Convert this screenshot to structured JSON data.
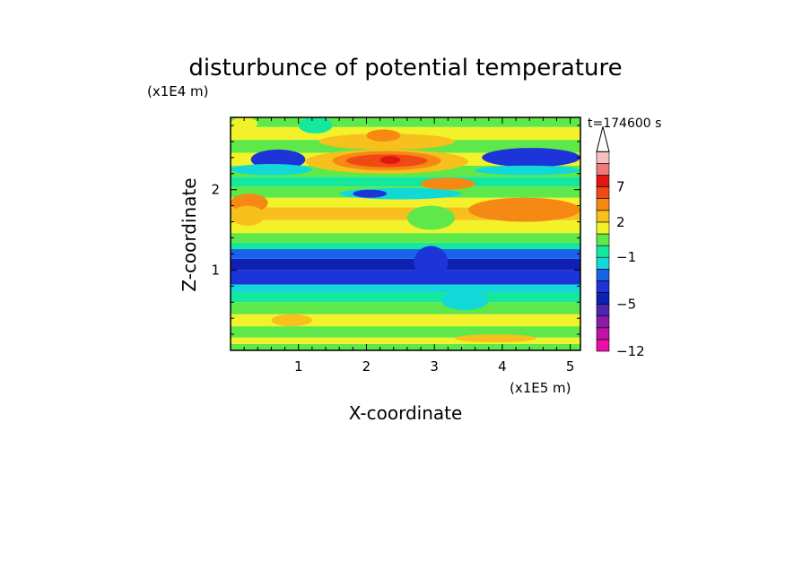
{
  "chart_data": {
    "type": "heatmap",
    "title": "disturbunce of potential temperature",
    "xlabel": "X-coordinate",
    "ylabel": "Z-coordinate",
    "x_unit": "(x1E5 m)",
    "y_unit": "(x1E4 m)",
    "time_label": "t=174600 s",
    "xlim": [
      0,
      5.15
    ],
    "ylim": [
      0,
      2.9
    ],
    "x_ticks": [
      "1",
      "2",
      "3",
      "4",
      "5"
    ],
    "y_ticks": [
      "1",
      "2"
    ],
    "colorbar": {
      "levels": [
        -12,
        -11,
        -9,
        -7,
        -5,
        -4,
        -3,
        -2,
        -1,
        0,
        1,
        2,
        3,
        5,
        7,
        9,
        11
      ],
      "colors": [
        "#ec0ea6",
        "#c212a6",
        "#8a1aa8",
        "#4c26b0",
        "#0f20b2",
        "#1d35d8",
        "#1863ea",
        "#13d8d8",
        "#13e89c",
        "#5ee84a",
        "#f2f22a",
        "#f7c01c",
        "#f58914",
        "#f04a14",
        "#e11512",
        "#f07878",
        "#f7c0c0"
      ],
      "tick_labels": [
        "-12",
        "-5",
        "-1",
        "2",
        "7"
      ]
    },
    "bands": [
      {
        "z0": 0.0,
        "z1": 0.08,
        "value": 0
      },
      {
        "z0": 0.08,
        "z1": 0.16,
        "value": 1.5
      },
      {
        "z0": 0.16,
        "z1": 0.3,
        "value": 0
      },
      {
        "z0": 0.3,
        "z1": 0.45,
        "value": 1.5
      },
      {
        "z0": 0.45,
        "z1": 0.6,
        "value": 0
      },
      {
        "z0": 0.6,
        "z1": 0.72,
        "value": -0.5
      },
      {
        "z0": 0.72,
        "z1": 0.82,
        "value": -1.5
      },
      {
        "z0": 0.82,
        "z1": 1.0,
        "value": -3.5
      },
      {
        "z0": 1.0,
        "z1": 1.14,
        "value": -5
      },
      {
        "z0": 1.14,
        "z1": 1.26,
        "value": -2.5
      },
      {
        "z0": 1.26,
        "z1": 1.34,
        "value": -0.8
      },
      {
        "z0": 1.34,
        "z1": 1.46,
        "value": 0.5
      },
      {
        "z0": 1.46,
        "z1": 1.62,
        "value": 1.5
      },
      {
        "z0": 1.62,
        "z1": 1.78,
        "value": 2.5
      },
      {
        "z0": 1.78,
        "z1": 1.9,
        "value": 1.5
      },
      {
        "z0": 1.9,
        "z1": 2.04,
        "value": 0.5
      },
      {
        "z0": 2.04,
        "z1": 2.16,
        "value": -0.5
      },
      {
        "z0": 2.16,
        "z1": 2.3,
        "value": 0.5
      },
      {
        "z0": 2.3,
        "z1": 2.46,
        "value": 1.5
      },
      {
        "z0": 2.46,
        "z1": 2.62,
        "value": 0.5
      },
      {
        "z0": 2.62,
        "z1": 2.78,
        "value": 1.5
      },
      {
        "z0": 2.78,
        "z1": 2.9,
        "value": 0.5
      }
    ],
    "patches": [
      {
        "x0": 0.0,
        "x1": 0.55,
        "z0": 1.72,
        "z1": 1.95,
        "value": 3.5
      },
      {
        "x0": 0.3,
        "x1": 1.1,
        "z0": 2.25,
        "z1": 2.5,
        "value": -4
      },
      {
        "x0": 0.0,
        "x1": 1.2,
        "z0": 2.18,
        "z1": 2.32,
        "value": -1.5
      },
      {
        "x0": 3.7,
        "x1": 5.15,
        "z0": 2.28,
        "z1": 2.52,
        "value": -4
      },
      {
        "x0": 3.6,
        "x1": 5.15,
        "z0": 2.18,
        "z1": 2.3,
        "value": -1.5
      },
      {
        "x0": 1.3,
        "x1": 3.3,
        "z0": 2.5,
        "z1": 2.7,
        "value": 2.5
      },
      {
        "x0": 1.1,
        "x1": 3.5,
        "z0": 2.2,
        "z1": 2.5,
        "value": 2.5
      },
      {
        "x0": 1.5,
        "x1": 3.1,
        "z0": 2.24,
        "z1": 2.48,
        "value": 4.5
      },
      {
        "x0": 1.7,
        "x1": 2.9,
        "z0": 2.28,
        "z1": 2.44,
        "value": 6
      },
      {
        "x0": 2.2,
        "x1": 2.5,
        "z0": 2.32,
        "z1": 2.42,
        "value": 8
      },
      {
        "x0": 1.6,
        "x1": 3.4,
        "z0": 1.88,
        "z1": 2.02,
        "value": -1.5
      },
      {
        "x0": 1.8,
        "x1": 2.3,
        "z0": 1.9,
        "z1": 2.0,
        "value": -3.5
      },
      {
        "x0": 3.5,
        "x1": 5.15,
        "z0": 1.6,
        "z1": 1.9,
        "value": 3.5
      },
      {
        "x0": 3.9,
        "x1": 4.9,
        "z0": 1.7,
        "z1": 1.85,
        "value": 4.5
      },
      {
        "x0": 0.0,
        "x1": 0.5,
        "z0": 1.55,
        "z1": 1.8,
        "value": 2.5
      },
      {
        "x0": 2.6,
        "x1": 3.3,
        "z0": 1.5,
        "z1": 1.8,
        "value": 0.5
      },
      {
        "x0": 2.7,
        "x1": 3.2,
        "z0": 0.9,
        "z1": 1.3,
        "value": -4
      },
      {
        "x0": 3.1,
        "x1": 3.8,
        "z0": 0.5,
        "z1": 0.75,
        "value": -1.5
      },
      {
        "x0": 0.0,
        "x1": 0.4,
        "z0": 2.75,
        "z1": 2.9,
        "value": 1.5
      },
      {
        "x0": 1.0,
        "x1": 1.5,
        "z0": 2.7,
        "z1": 2.9,
        "value": -0.5
      },
      {
        "x0": 0.6,
        "x1": 1.2,
        "z0": 0.3,
        "z1": 0.45,
        "value": 2.5
      },
      {
        "x0": 3.3,
        "x1": 4.5,
        "z0": 0.1,
        "z1": 0.2,
        "value": 2.5
      },
      {
        "x0": 2.0,
        "x1": 2.5,
        "z0": 2.6,
        "z1": 2.75,
        "value": 4.5
      },
      {
        "x0": 2.8,
        "x1": 3.6,
        "z0": 2.0,
        "z1": 2.15,
        "value": 3.5
      }
    ]
  }
}
